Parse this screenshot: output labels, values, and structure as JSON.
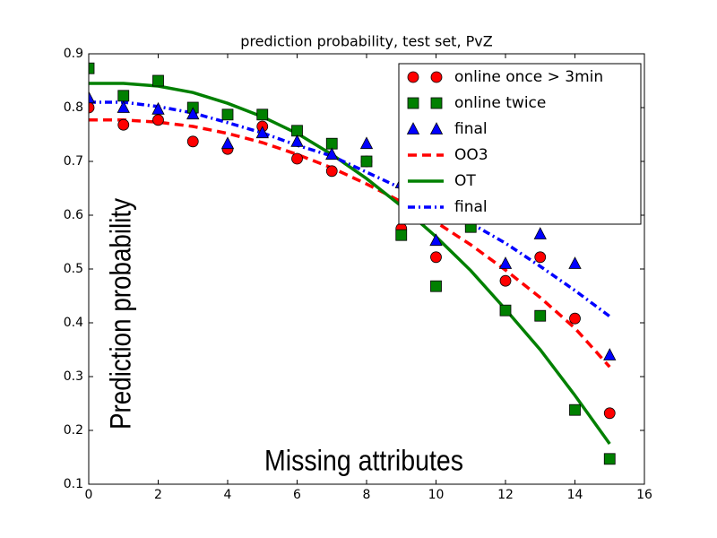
{
  "chart_data": {
    "type": "line",
    "title": "prediction probability, test set, PvZ",
    "x_label": "Missing attributes",
    "y_label": "Prediction probability",
    "x": [
      0,
      1,
      2,
      3,
      4,
      5,
      6,
      7,
      8,
      9,
      10,
      11,
      12,
      13,
      14,
      15
    ],
    "xlim": [
      0,
      16
    ],
    "xticks": [
      0,
      2,
      4,
      6,
      8,
      10,
      12,
      14,
      16
    ],
    "ylim": [
      0.1,
      0.9
    ],
    "yticks": [
      0.1,
      0.2,
      0.3,
      0.4,
      0.5,
      0.6,
      0.7,
      0.8,
      0.9
    ],
    "legend": "upper right",
    "series": [
      {
        "name": "online once > 3min",
        "color": "#ff0000",
        "style": "circle",
        "values": [
          0.8,
          0.768,
          0.777,
          0.737,
          0.723,
          0.765,
          0.705,
          0.682,
          0.7,
          0.575,
          0.522,
          0.58,
          0.478,
          0.522,
          0.408,
          0.232
        ]
      },
      {
        "name": "online twice",
        "color": "#008000",
        "style": "square",
        "values": [
          0.873,
          0.822,
          0.85,
          0.8,
          0.787,
          0.787,
          0.757,
          0.733,
          0.7,
          0.563,
          0.468,
          0.578,
          0.423,
          0.413,
          0.238,
          0.147
        ]
      },
      {
        "name": "final",
        "color": "#0000ff",
        "style": "triangle",
        "values": [
          0.818,
          0.8,
          0.797,
          0.788,
          0.733,
          0.753,
          0.737,
          0.713,
          0.733,
          0.66,
          0.553,
          0.593,
          0.51,
          0.565,
          0.51,
          0.34
        ]
      },
      {
        "name": "OO3",
        "color": "#ff0000",
        "style": "dashed",
        "values": [
          0.777,
          0.777,
          0.773,
          0.765,
          0.752,
          0.735,
          0.713,
          0.688,
          0.658,
          0.625,
          0.587,
          0.545,
          0.498,
          0.447,
          0.39,
          0.318
        ]
      },
      {
        "name": "OT",
        "color": "#008000",
        "style": "solid",
        "values": [
          0.845,
          0.845,
          0.84,
          0.828,
          0.808,
          0.783,
          0.752,
          0.713,
          0.668,
          0.617,
          0.56,
          0.497,
          0.425,
          0.35,
          0.265,
          0.175
        ]
      },
      {
        "name": "final",
        "color": "#0000ff",
        "style": "dashdot",
        "values": [
          0.81,
          0.81,
          0.802,
          0.79,
          0.772,
          0.753,
          0.73,
          0.71,
          0.68,
          0.65,
          0.62,
          0.585,
          0.548,
          0.505,
          0.46,
          0.412
        ]
      }
    ]
  }
}
